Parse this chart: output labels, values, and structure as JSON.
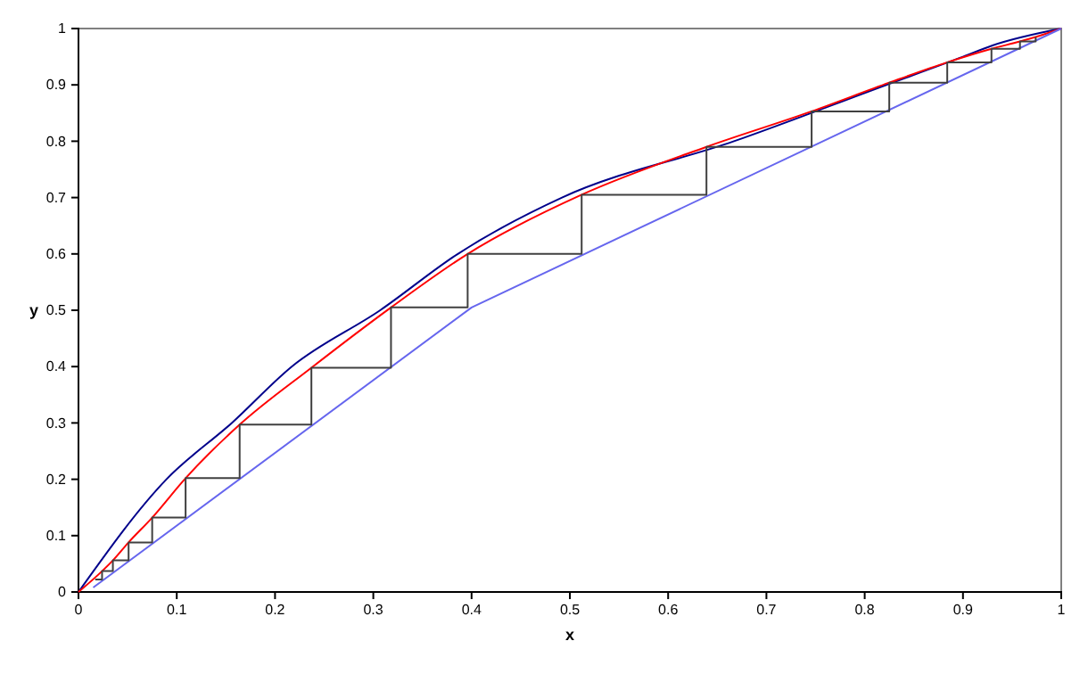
{
  "chart_data": {
    "type": "line",
    "xlabel": "x",
    "ylabel": "y",
    "xlim": [
      0,
      1
    ],
    "ylim": [
      0,
      1
    ],
    "xticks": [
      0,
      0.1,
      0.2,
      0.3,
      0.4,
      0.5,
      0.6,
      0.7,
      0.8,
      0.9,
      1
    ],
    "yticks": [
      0,
      0.1,
      0.2,
      0.3,
      0.4,
      0.5,
      0.6,
      0.7,
      0.8,
      0.9,
      1
    ],
    "marker": "none",
    "line_style": "solid",
    "series": [
      {
        "color": "#00008b",
        "x": [
          0,
          0.0895,
          0.156,
          0.217,
          0.307,
          0.386,
          0.492,
          0.667,
          0.822,
          0.9,
          0.93,
          1
        ],
        "values": [
          0,
          0.2,
          0.3,
          0.4,
          0.5,
          0.6,
          0.7,
          0.8,
          0.9,
          0.95,
          0.97,
          1
        ]
      },
      {
        "color": "#ff0000",
        "x": [
          0,
          0.024,
          0.035,
          0.051,
          0.075,
          0.109,
          0.164,
          0.237,
          0.318,
          0.396,
          0.512,
          0.639,
          0.746,
          0.825,
          0.884,
          0.929,
          0.958,
          0.974,
          1
        ],
        "values": [
          0,
          0.037,
          0.056,
          0.088,
          0.132,
          0.202,
          0.297,
          0.398,
          0.505,
          0.6,
          0.705,
          0.79,
          0.853,
          0.904,
          0.94,
          0.964,
          0.977,
          0.985,
          1
        ]
      },
      {
        "color": "#6666ee",
        "x": [
          0.015,
          0.4,
          1
        ],
        "values": [
          0.008,
          0.505,
          1
        ]
      },
      {
        "color": "#404040",
        "x": [
          0.017,
          0.024,
          0.024,
          0.035,
          0.035,
          0.051,
          0.051,
          0.075,
          0.075,
          0.109,
          0.109,
          0.164,
          0.164,
          0.237,
          0.237,
          0.318,
          0.318,
          0.396,
          0.396,
          0.512,
          0.512,
          0.639,
          0.639,
          0.746,
          0.746,
          0.825,
          0.825,
          0.884,
          0.884,
          0.929,
          0.929,
          0.958,
          0.958,
          0.974,
          0.974
        ],
        "values": [
          0.022,
          0.022,
          0.037,
          0.037,
          0.056,
          0.056,
          0.088,
          0.088,
          0.132,
          0.132,
          0.202,
          0.202,
          0.297,
          0.297,
          0.398,
          0.398,
          0.505,
          0.505,
          0.6,
          0.6,
          0.705,
          0.705,
          0.79,
          0.79,
          0.853,
          0.853,
          0.904,
          0.904,
          0.94,
          0.94,
          0.964,
          0.964,
          0.977,
          0.977,
          0.985
        ]
      }
    ]
  }
}
